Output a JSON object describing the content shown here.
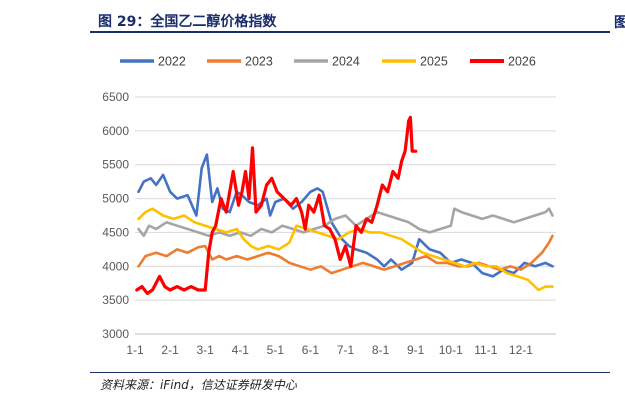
{
  "figure": {
    "title": "图 29：全国乙二醇价格指数",
    "source": "资料来源：iFind，信达证券研发中心",
    "edge_glyph": "图"
  },
  "chart_data": {
    "type": "line",
    "title": "",
    "xlabel": "",
    "ylabel": "",
    "ylim": [
      3000,
      6500
    ],
    "yticks": [
      3000,
      3500,
      4000,
      4500,
      5000,
      5500,
      6000,
      6500
    ],
    "x_unit": "month (1 = Jan 1, 13 = Dec 31)",
    "xlim": [
      1,
      13
    ],
    "xticks": [
      1,
      2,
      3,
      4,
      5,
      6,
      7,
      8,
      9,
      10,
      11,
      12
    ],
    "xtick_labels": [
      "1-1",
      "2-1",
      "3-1",
      "4-1",
      "5-1",
      "6-1",
      "7-1",
      "8-1",
      "9-1",
      "10-1",
      "11-1",
      "12-1"
    ],
    "grid": "horizontal",
    "legend_position": "top",
    "series": [
      {
        "name": "2022",
        "color": "#4472C4",
        "x": [
          1.1,
          1.25,
          1.45,
          1.6,
          1.8,
          2.0,
          2.2,
          2.5,
          2.75,
          2.9,
          3.05,
          3.2,
          3.35,
          3.5,
          3.7,
          3.9,
          4.05,
          4.25,
          4.5,
          4.75,
          4.85,
          5.0,
          5.25,
          5.5,
          5.75,
          6.0,
          6.2,
          6.35,
          6.6,
          6.9,
          7.1,
          7.3,
          7.6,
          7.9,
          8.1,
          8.3,
          8.6,
          8.9,
          9.1,
          9.4,
          9.7,
          10.0,
          10.3,
          10.6,
          10.9,
          11.2,
          11.5,
          11.8,
          12.1,
          12.4,
          12.7,
          12.9
        ],
        "values": [
          5100,
          5250,
          5300,
          5200,
          5350,
          5100,
          5000,
          5050,
          4750,
          5450,
          5650,
          4950,
          5150,
          4850,
          4800,
          5100,
          5050,
          4950,
          4900,
          5000,
          4750,
          4950,
          5000,
          4850,
          4950,
          5100,
          5150,
          5100,
          4650,
          4400,
          4300,
          4250,
          4200,
          4100,
          4000,
          4100,
          3950,
          4050,
          4400,
          4250,
          4200,
          4050,
          4100,
          4050,
          3900,
          3850,
          3950,
          3900,
          4050,
          4000,
          4050,
          4000
        ]
      },
      {
        "name": "2023",
        "color": "#ED7D31",
        "x": [
          1.1,
          1.3,
          1.6,
          1.9,
          2.2,
          2.5,
          2.8,
          3.0,
          3.2,
          3.4,
          3.6,
          3.9,
          4.2,
          4.5,
          4.8,
          5.1,
          5.4,
          5.7,
          6.0,
          6.3,
          6.6,
          6.9,
          7.2,
          7.5,
          7.8,
          8.1,
          8.4,
          8.7,
          9.0,
          9.3,
          9.6,
          9.9,
          10.2,
          10.5,
          10.8,
          11.1,
          11.4,
          11.7,
          12.0,
          12.3,
          12.6,
          12.8,
          12.9
        ],
        "values": [
          4000,
          4150,
          4200,
          4150,
          4250,
          4200,
          4280,
          4300,
          4100,
          4150,
          4100,
          4150,
          4100,
          4150,
          4200,
          4150,
          4050,
          4000,
          3950,
          4000,
          3900,
          3950,
          4000,
          4050,
          4000,
          3950,
          4000,
          4050,
          4100,
          4150,
          4050,
          4050,
          4000,
          4000,
          4050,
          4000,
          3950,
          4000,
          3950,
          4050,
          4200,
          4350,
          4450
        ]
      },
      {
        "name": "2024",
        "color": "#A5A5A5",
        "x": [
          1.1,
          1.25,
          1.4,
          1.6,
          1.9,
          2.2,
          2.5,
          2.8,
          3.1,
          3.4,
          3.7,
          4.0,
          4.3,
          4.6,
          4.9,
          5.2,
          5.5,
          5.8,
          6.1,
          6.4,
          6.7,
          7.0,
          7.3,
          7.6,
          7.9,
          8.2,
          8.5,
          8.8,
          9.1,
          9.4,
          9.7,
          10.0,
          10.1,
          10.3,
          10.6,
          10.9,
          11.2,
          11.5,
          11.8,
          12.1,
          12.4,
          12.7,
          12.8,
          12.9
        ],
        "values": [
          4550,
          4450,
          4600,
          4550,
          4650,
          4600,
          4550,
          4500,
          4450,
          4500,
          4450,
          4500,
          4450,
          4550,
          4500,
          4600,
          4550,
          4500,
          4550,
          4600,
          4700,
          4750,
          4600,
          4700,
          4800,
          4750,
          4700,
          4650,
          4550,
          4500,
          4550,
          4600,
          4850,
          4800,
          4750,
          4700,
          4750,
          4700,
          4650,
          4700,
          4750,
          4800,
          4850,
          4750
        ]
      },
      {
        "name": "2025",
        "color": "#FFC000",
        "x": [
          1.1,
          1.3,
          1.5,
          1.8,
          2.1,
          2.4,
          2.7,
          3.0,
          3.3,
          3.6,
          3.9,
          4.1,
          4.3,
          4.5,
          4.8,
          5.1,
          5.4,
          5.6,
          5.9,
          6.2,
          6.5,
          6.8,
          7.1,
          7.4,
          7.7,
          8.0,
          8.3,
          8.6,
          8.9,
          9.2,
          9.5,
          9.8,
          10.1,
          10.4,
          10.7,
          11.0,
          11.3,
          11.6,
          11.9,
          12.2,
          12.5,
          12.7,
          12.9
        ],
        "values": [
          4700,
          4800,
          4850,
          4750,
          4700,
          4750,
          4650,
          4600,
          4550,
          4500,
          4550,
          4400,
          4300,
          4250,
          4300,
          4250,
          4350,
          4600,
          4550,
          4500,
          4450,
          4400,
          4500,
          4550,
          4500,
          4500,
          4450,
          4400,
          4300,
          4200,
          4150,
          4100,
          4050,
          4000,
          4050,
          4000,
          4000,
          3900,
          3850,
          3800,
          3650,
          3700,
          3700
        ]
      },
      {
        "name": "2026",
        "color": "#FF0000",
        "x": [
          1.05,
          1.2,
          1.35,
          1.5,
          1.7,
          1.85,
          2.0,
          2.2,
          2.4,
          2.6,
          2.8,
          3.0,
          3.1,
          3.2,
          3.3,
          3.45,
          3.6,
          3.8,
          3.95,
          4.05,
          4.15,
          4.25,
          4.35,
          4.45,
          4.6,
          4.75,
          4.9,
          5.05,
          5.25,
          5.45,
          5.6,
          5.75,
          5.85,
          5.95,
          6.1,
          6.25,
          6.4,
          6.55,
          6.7,
          6.85,
          7.0,
          7.15,
          7.3,
          7.45,
          7.6,
          7.75,
          7.9,
          8.05,
          8.2,
          8.35,
          8.5,
          8.6,
          8.7,
          8.8,
          8.85,
          8.9,
          9.0
        ],
        "values": [
          3650,
          3700,
          3600,
          3650,
          3850,
          3700,
          3650,
          3700,
          3650,
          3700,
          3650,
          3650,
          4200,
          4500,
          4600,
          5000,
          4800,
          5400,
          4900,
          5100,
          5400,
          5000,
          5750,
          4800,
          4900,
          5200,
          5300,
          5100,
          5000,
          4900,
          5000,
          4800,
          4550,
          4900,
          4800,
          5050,
          4600,
          4550,
          4400,
          4100,
          4300,
          4000,
          4600,
          4500,
          4700,
          4650,
          4900,
          5200,
          5100,
          5400,
          5300,
          5550,
          5700,
          6150,
          6200,
          5700,
          5700
        ]
      }
    ]
  }
}
